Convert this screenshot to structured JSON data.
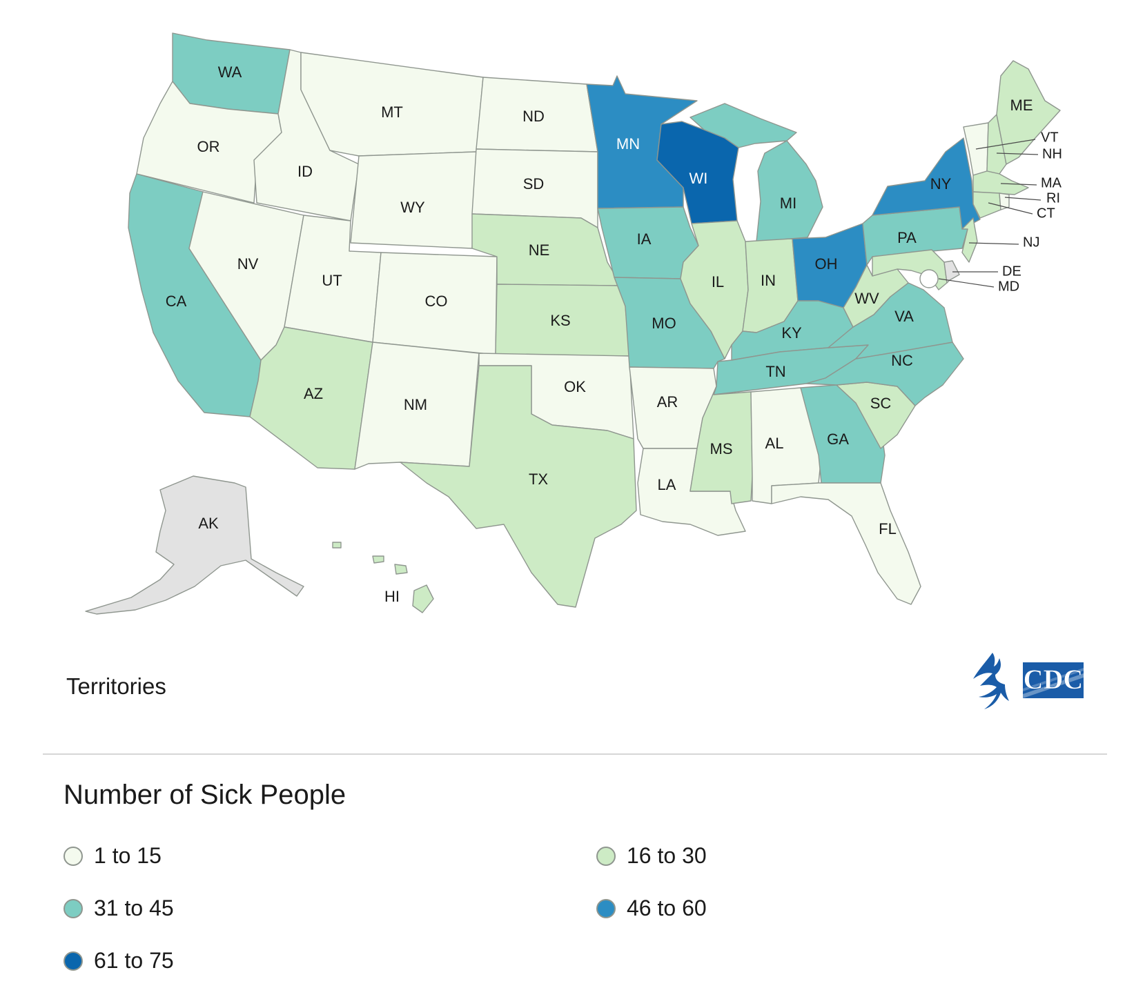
{
  "legend": {
    "title": "Number of Sick People",
    "ranges": [
      {
        "label": "1 to 15",
        "color": "#f4faee"
      },
      {
        "label": "16 to 30",
        "color": "#cdebc5"
      },
      {
        "label": "31 to 45",
        "color": "#7dcdc2"
      },
      {
        "label": "46 to 60",
        "color": "#2c8dc3"
      },
      {
        "label": "61 to 75",
        "color": "#0a66ad"
      }
    ],
    "no_data_color": "#e2e2e2"
  },
  "territories_label": "Territories",
  "logo": {
    "hhs": "hhs-eagle-icon",
    "cdc_text": "CDC",
    "color": "#1a5ca8"
  },
  "states": [
    {
      "id": "WA",
      "range": 2
    },
    {
      "id": "OR",
      "range": 0
    },
    {
      "id": "CA",
      "range": 2
    },
    {
      "id": "ID",
      "range": 0
    },
    {
      "id": "NV",
      "range": 0
    },
    {
      "id": "MT",
      "range": 0
    },
    {
      "id": "WY",
      "range": 0
    },
    {
      "id": "UT",
      "range": 0
    },
    {
      "id": "AZ",
      "range": 1
    },
    {
      "id": "CO",
      "range": 0
    },
    {
      "id": "NM",
      "range": 0
    },
    {
      "id": "ND",
      "range": 0
    },
    {
      "id": "SD",
      "range": 0
    },
    {
      "id": "NE",
      "range": 1
    },
    {
      "id": "KS",
      "range": 1
    },
    {
      "id": "OK",
      "range": 0
    },
    {
      "id": "TX",
      "range": 1
    },
    {
      "id": "MN",
      "range": 3
    },
    {
      "id": "IA",
      "range": 2
    },
    {
      "id": "MO",
      "range": 2
    },
    {
      "id": "AR",
      "range": 0
    },
    {
      "id": "LA",
      "range": 0
    },
    {
      "id": "WI",
      "range": 4
    },
    {
      "id": "IL",
      "range": 1
    },
    {
      "id": "MI",
      "range": 2
    },
    {
      "id": "IN",
      "range": 1
    },
    {
      "id": "OH",
      "range": 3
    },
    {
      "id": "KY",
      "range": 2
    },
    {
      "id": "TN",
      "range": 2
    },
    {
      "id": "MS",
      "range": 1
    },
    {
      "id": "AL",
      "range": 0
    },
    {
      "id": "GA",
      "range": 2
    },
    {
      "id": "FL",
      "range": 0
    },
    {
      "id": "SC",
      "range": 1
    },
    {
      "id": "NC",
      "range": 2
    },
    {
      "id": "VA",
      "range": 2
    },
    {
      "id": "WV",
      "range": 1
    },
    {
      "id": "PA",
      "range": 2
    },
    {
      "id": "NY",
      "range": 3
    },
    {
      "id": "NJ",
      "range": 1
    },
    {
      "id": "DE",
      "range": null
    },
    {
      "id": "MD",
      "range": 1
    },
    {
      "id": "CT",
      "range": 1
    },
    {
      "id": "RI",
      "range": 0
    },
    {
      "id": "MA",
      "range": 1
    },
    {
      "id": "VT",
      "range": 0
    },
    {
      "id": "NH",
      "range": 1
    },
    {
      "id": "ME",
      "range": 1
    },
    {
      "id": "AK",
      "range": null
    },
    {
      "id": "HI",
      "range": 1
    }
  ]
}
